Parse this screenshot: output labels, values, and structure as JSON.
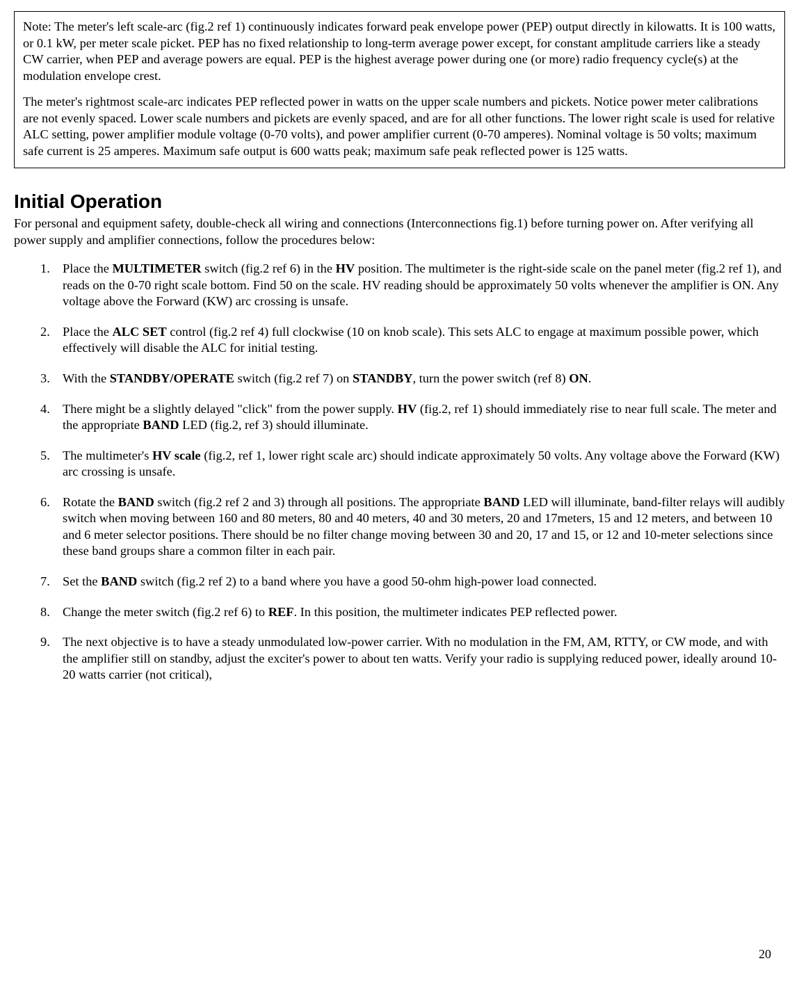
{
  "note": {
    "para1": "Note: The meter's left scale-arc (fig.2 ref 1) continuously indicates forward peak envelope power (PEP) output directly in kilowatts. It is 100 watts, or 0.1 kW, per meter scale picket. PEP has no fixed relationship to long-term average power except, for constant amplitude carriers like a steady CW carrier, when PEP and average powers are equal. PEP is the highest average power during one (or more) radio frequency cycle(s) at the modulation envelope crest.",
    "para2": "The meter's rightmost scale-arc indicates PEP reflected power in watts on the upper scale numbers and pickets. Notice power meter calibrations are not evenly spaced. Lower scale numbers and pickets are evenly spaced, and are for all other functions. The lower right scale is used for relative ALC setting, power amplifier module voltage (0-70 volts), and power amplifier current (0-70 amperes).   Nominal voltage is 50 volts; maximum safe current is 25 amperes. Maximum safe output is 600 watts peak; maximum safe peak reflected power is 125 watts."
  },
  "heading": "Initial Operation",
  "intro": "For personal and equipment safety, double-check all wiring and connections (Interconnections fig.1) before turning power on. After verifying all power supply and amplifier connections, follow the procedures below:",
  "steps": {
    "s1a": "Place the ",
    "s1b": "MULTIMETER",
    "s1c": " switch (fig.2 ref 6) in the ",
    "s1d": "HV",
    "s1e": " position. The multimeter is the right-side scale on the panel meter (fig.2 ref 1), and reads on the 0-70 right scale bottom. Find 50 on the scale. HV reading should be approximately 50 volts whenever the amplifier is ON. Any voltage above the Forward (KW) arc crossing is unsafe.",
    "s2a": "Place the ",
    "s2b": "ALC SET",
    "s2c": " control (fig.2 ref 4) full clockwise (10 on knob scale). This sets ALC to engage at maximum possible power, which effectively will disable the ALC for initial testing.",
    "s3a": "With the ",
    "s3b": "STANDBY/OPERATE",
    "s3c": " switch (fig.2 ref 7) on ",
    "s3d": "STANDBY",
    "s3e": ", turn the power switch (ref 8) ",
    "s3f": "ON",
    "s3g": ".",
    "s4a": "There might be a slightly delayed \"click\" from the power supply. ",
    "s4b": "HV",
    "s4c": " (fig.2, ref 1) should immediately rise to near full scale. The meter and the appropriate ",
    "s4d": "BAND",
    "s4e": " LED (fig.2, ref 3) should illuminate.",
    "s5a": "The multimeter's ",
    "s5b": "HV scale",
    "s5c": " (fig.2, ref 1, lower right scale arc) should indicate approximately 50 volts. Any voltage above the Forward (KW) arc crossing is unsafe.",
    "s6a": "Rotate the ",
    "s6b": "BAND",
    "s6c": " switch (fig.2 ref 2 and 3) through all positions. The appropriate ",
    "s6d": "BAND",
    "s6e": " LED will illuminate, band-filter relays will audibly switch when moving between 160 and 80 meters, 80 and 40 meters, 40 and 30 meters, 20 and 17meters, 15 and 12 meters, and between 10 and 6 meter selector positions. There should be no filter change moving between 30 and 20, 17 and 15, or 12 and 10-meter selections since these band groups share a common filter in each pair.",
    "s7a": "Set the ",
    "s7b": "BAND",
    "s7c": " switch (fig.2 ref 2) to a band where you have a good 50-ohm high-power load connected.",
    "s8a": "Change the meter switch (fig.2 ref 6) to ",
    "s8b": "REF",
    "s8c": ". In this position, the multimeter indicates PEP reflected power.",
    "s9": "The next objective is to have a steady unmodulated low-power carrier. With no modulation in the FM, AM, RTTY, or CW mode, and with the amplifier still on standby, adjust the exciter's power to about ten watts. Verify your radio is supplying reduced power, ideally around 10-20 watts carrier (not critical),"
  },
  "page_number": "20"
}
